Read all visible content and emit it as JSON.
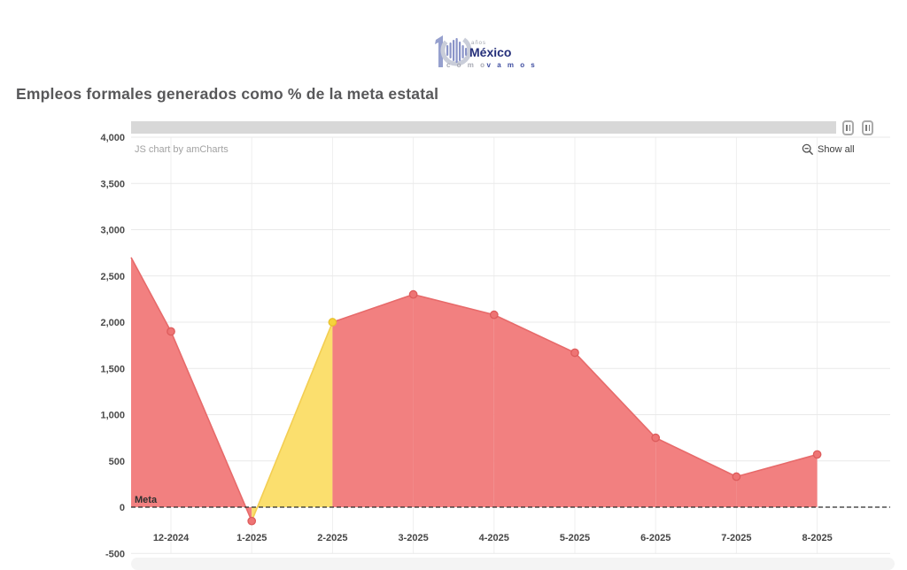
{
  "logo": {
    "anios": "años",
    "mexico": "México",
    "como": "c o m o",
    "vamos": "v a m o s"
  },
  "header": {
    "title": "Empleos formales generados como % de la meta estatal"
  },
  "chart_ui": {
    "credit": "JS chart by amCharts",
    "show_all": "Show all"
  },
  "chart_data": {
    "type": "area",
    "title": "Empleos formales generados como % de la meta estatal",
    "categories": [
      "12-2024",
      "1-2025",
      "2-2025",
      "3-2025",
      "4-2025",
      "5-2025",
      "6-2025",
      "7-2025",
      "8-2025"
    ],
    "values": [
      1900,
      -150,
      2000,
      2300,
      2080,
      1670,
      750,
      330,
      570
    ],
    "edge_start_value": 2700,
    "ylim": [
      -500,
      4000
    ],
    "ytick_step": 500,
    "ytick_labels": [
      "4,000",
      "3,500",
      "3,000",
      "2,500",
      "2,000",
      "1,500",
      "1,000",
      "500",
      "0",
      "-500"
    ],
    "grid": true,
    "legend": "none",
    "meta_line": {
      "label": "Meta",
      "value": 0,
      "style": "dashed",
      "color": "#2B2B2B"
    },
    "segment_colors": [
      "red",
      "red",
      "yellow",
      "red",
      "red",
      "red",
      "red",
      "red",
      "red"
    ],
    "point_colors": [
      "red",
      "red",
      "yellow",
      "red",
      "red",
      "red",
      "red",
      "red",
      "red"
    ],
    "palette": {
      "red_fill": "#F28080",
      "red_line": "#E76A6A",
      "red_dot": "#EE7474",
      "red_dot_stroke": "#DD5C5C",
      "yellow_fill": "#FBDF6E",
      "yellow_line": "#F3CE52",
      "yellow_dot": "#F6D33C",
      "yellow_dot_stroke": "#E8C12D",
      "grid_color": "#E9E9E9",
      "vgrid_color": "#EFEFEF",
      "axis_label_color": "#4A4A4A",
      "scrollbar_color": "#D8D8D8"
    }
  }
}
